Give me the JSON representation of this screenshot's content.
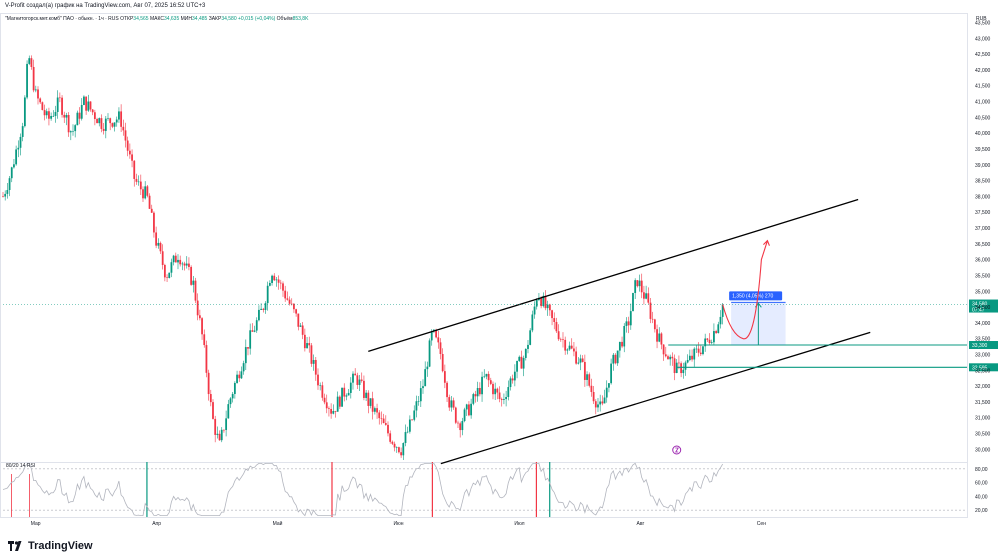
{
  "header": {
    "credit": "V-Profit создал(а) график на TradingView.com, Авг 07, 2025 16:52 UTC+3"
  },
  "legend": {
    "symbol": "\"Магнитогорск.мет.комб\" ПАО · обыкн. · 1ч · RUS",
    "open_label": "ОТКР",
    "open": "34,565",
    "high_label": "МАКС",
    "high": "34,635",
    "low_label": "МИН",
    "low": "34,485",
    "close_label": "ЗАКР",
    "close": "34,580",
    "change": "+0,015 (+0,04%)",
    "volume_label": "Объём",
    "volume": "853,8K"
  },
  "rsi": {
    "label": "80/20 14 RSI"
  },
  "brand": {
    "name": "TradingView"
  },
  "colors": {
    "up": "#089981",
    "down": "#f23645",
    "accent": "#2962ff",
    "rsi": "#b2b5be"
  },
  "chart_data": {
    "type": "candlestick",
    "currency": "RUB",
    "y_ticks": [
      "43,500",
      "43,000",
      "42,500",
      "42,000",
      "41,500",
      "41,000",
      "40,500",
      "40,000",
      "39,500",
      "39,000",
      "38,500",
      "38,000",
      "37,500",
      "37,000",
      "36,500",
      "36,000",
      "35,500",
      "35,000",
      "34,500",
      "34,000",
      "33,500",
      "33,000",
      "32,500",
      "32,000",
      "31,500",
      "31,000",
      "30,500",
      "30,000"
    ],
    "y_tick_values": [
      43.5,
      43,
      42.5,
      42,
      41.5,
      41,
      40.5,
      40,
      39.5,
      39,
      38.5,
      38,
      37.5,
      37,
      36.5,
      36,
      35.5,
      35,
      34.5,
      34,
      33.5,
      33,
      32.5,
      32,
      31.5,
      31,
      30.5,
      30
    ],
    "ylim": [
      29.6,
      43.8
    ],
    "x_labels": [
      "Мар",
      "Апр",
      "Май",
      "Июн",
      "Июл",
      "Авг",
      "Сен"
    ],
    "x_label_values": [
      0.0,
      1.0,
      2.0,
      3.0,
      4.0,
      5.0,
      6.0
    ],
    "xlim": [
      -0.27,
      7.7
    ],
    "price_path": [
      [
        -0.27,
        38.0
      ],
      [
        -0.2,
        38.8
      ],
      [
        -0.1,
        40.5
      ],
      [
        -0.06,
        42.5
      ],
      [
        0.0,
        41.2
      ],
      [
        0.1,
        40.4
      ],
      [
        0.2,
        41.0
      ],
      [
        0.3,
        40.0
      ],
      [
        0.4,
        41.0
      ],
      [
        0.55,
        40.3
      ],
      [
        0.7,
        40.5
      ],
      [
        0.82,
        38.5
      ],
      [
        0.92,
        38.0
      ],
      [
        1.0,
        36.5
      ],
      [
        1.08,
        35.5
      ],
      [
        1.18,
        36.2
      ],
      [
        1.3,
        35.3
      ],
      [
        1.38,
        33.5
      ],
      [
        1.46,
        31.0
      ],
      [
        1.52,
        30.1
      ],
      [
        1.6,
        31.5
      ],
      [
        1.75,
        33.3
      ],
      [
        1.88,
        34.5
      ],
      [
        1.95,
        35.7
      ],
      [
        2.05,
        35.0
      ],
      [
        2.15,
        34.2
      ],
      [
        2.25,
        33.2
      ],
      [
        2.35,
        32.0
      ],
      [
        2.45,
        31.2
      ],
      [
        2.55,
        31.8
      ],
      [
        2.65,
        32.3
      ],
      [
        2.75,
        31.5
      ],
      [
        2.85,
        30.9
      ],
      [
        2.95,
        30.3
      ],
      [
        3.02,
        30.0
      ],
      [
        3.1,
        30.8
      ],
      [
        3.2,
        32.0
      ],
      [
        3.28,
        33.7
      ],
      [
        3.35,
        33.0
      ],
      [
        3.42,
        31.5
      ],
      [
        3.5,
        30.8
      ],
      [
        3.6,
        31.4
      ],
      [
        3.72,
        32.3
      ],
      [
        3.85,
        31.5
      ],
      [
        3.95,
        32.4
      ],
      [
        4.05,
        33.0
      ],
      [
        4.15,
        35.0
      ],
      [
        4.25,
        34.2
      ],
      [
        4.35,
        33.5
      ],
      [
        4.5,
        32.8
      ],
      [
        4.6,
        31.8
      ],
      [
        4.68,
        31.2
      ],
      [
        4.75,
        32.5
      ],
      [
        4.82,
        33.2
      ],
      [
        4.9,
        34.0
      ],
      [
        4.97,
        35.4
      ],
      [
        5.05,
        34.7
      ],
      [
        5.15,
        33.5
      ],
      [
        5.22,
        33.0
      ],
      [
        5.3,
        32.5
      ],
      [
        5.38,
        32.7
      ],
      [
        5.45,
        33.0
      ],
      [
        5.55,
        33.4
      ],
      [
        5.62,
        33.8
      ],
      [
        5.68,
        34.58
      ]
    ],
    "projection_path": [
      [
        5.68,
        34.58
      ],
      [
        5.75,
        33.6
      ],
      [
        5.85,
        33.5
      ],
      [
        6.0,
        36.0
      ],
      [
        6.05,
        36.6
      ]
    ],
    "channel_upper": [
      [
        2.75,
        33.1
      ],
      [
        6.8,
        37.9
      ]
    ],
    "channel_lower": [
      [
        3.35,
        29.55
      ],
      [
        6.9,
        33.7
      ]
    ],
    "horizontal_levels": [
      {
        "value": 33.3,
        "label": "33,300",
        "from": 5.23
      },
      {
        "value": 32.595,
        "label": "32,595",
        "from": 5.3
      }
    ],
    "current_price": {
      "value": 34.58,
      "label": "34,580",
      "countdown": "07:47"
    },
    "measure": {
      "label": "1,350 (4,05%) 270",
      "from_value": 33.3,
      "to_value": 34.65,
      "x0": 5.75,
      "x1": 6.2
    },
    "rsi": {
      "ylim": [
        10,
        90
      ],
      "ticks": [
        "80,00",
        "60,00",
        "40,00",
        "20,00"
      ],
      "tick_values": [
        80,
        60,
        40,
        20
      ],
      "bands": [
        80,
        20
      ],
      "overbought_marks": [
        2.45,
        3.28,
        4.14
      ],
      "oversold_marks": [
        0.92,
        4.25
      ]
    },
    "event_marker_x": 5.3
  }
}
